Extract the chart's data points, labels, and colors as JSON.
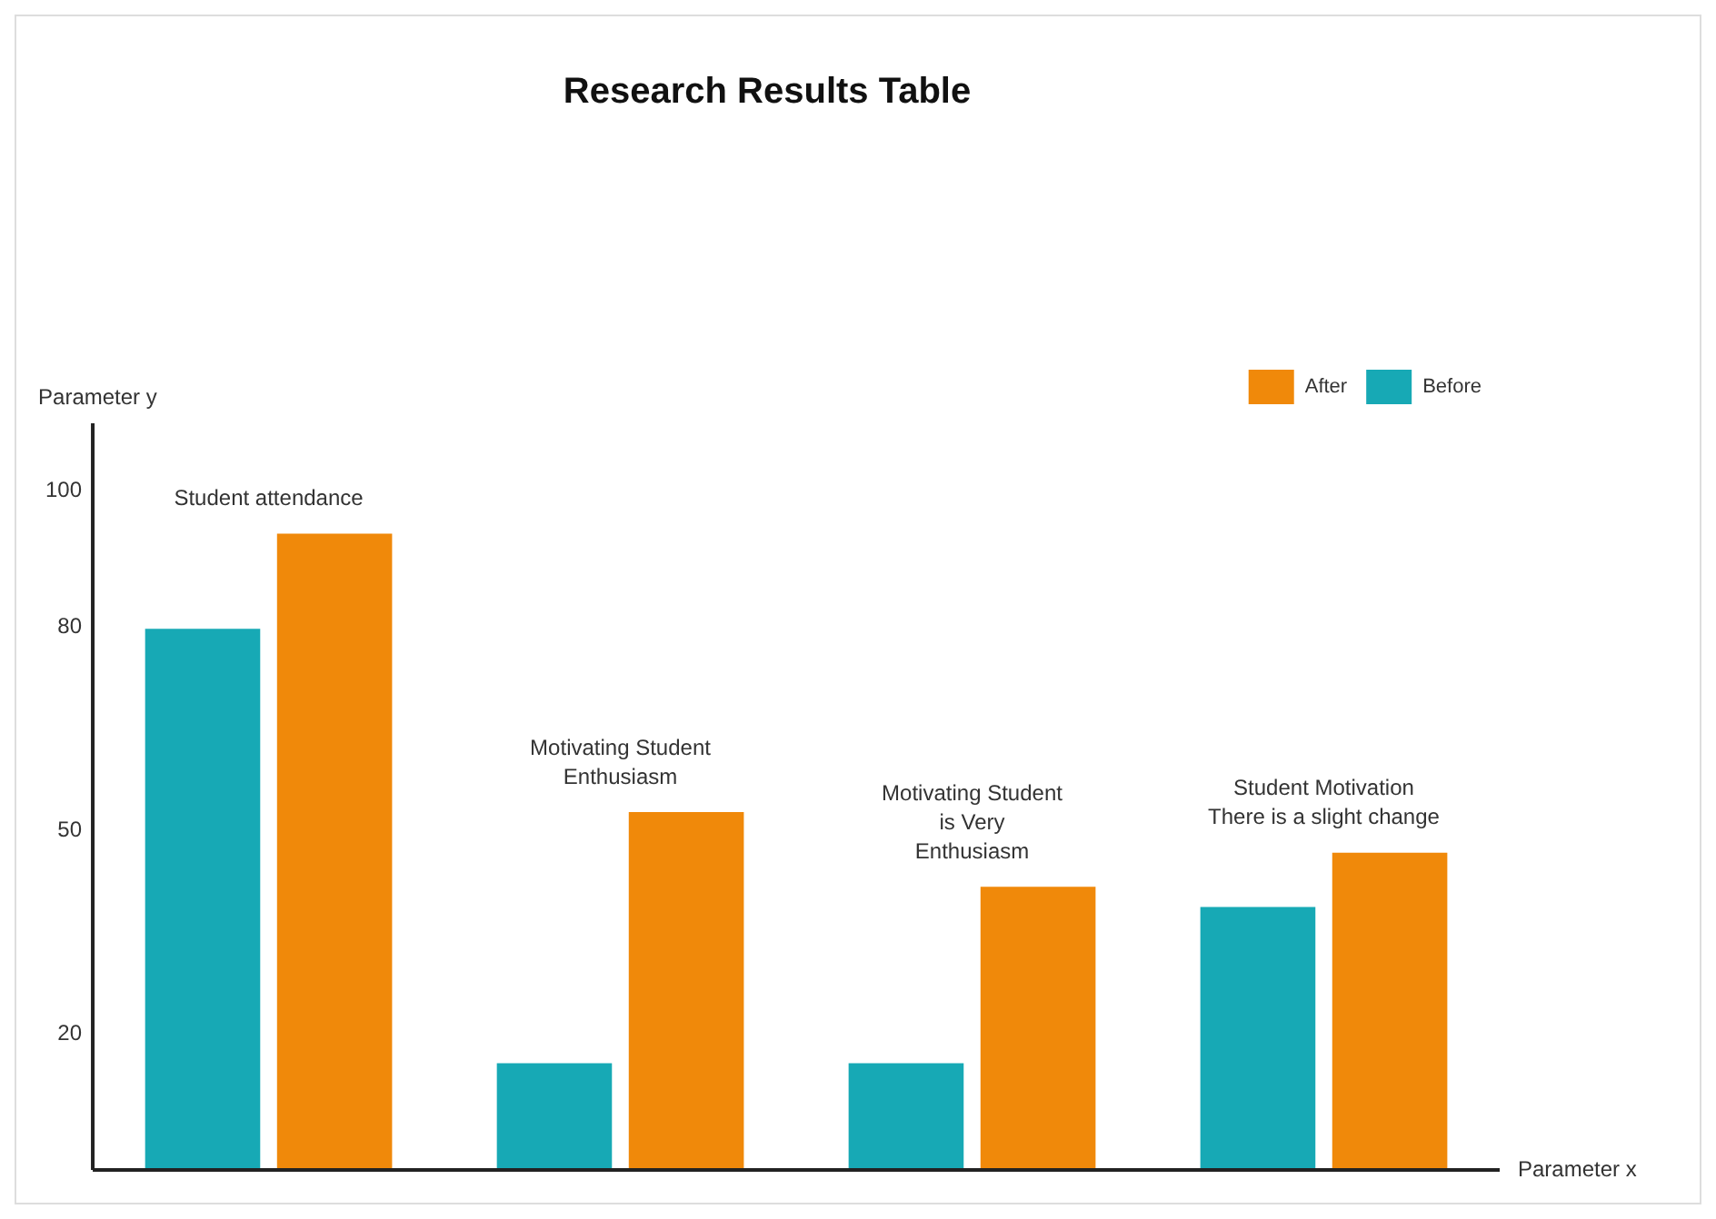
{
  "chart_data": {
    "type": "bar",
    "title": "Research Results Table",
    "xlabel": "Parameter x",
    "ylabel": "Parameter y",
    "categories": [
      null,
      null,
      null,
      null
    ],
    "series": [
      {
        "name": "Before",
        "color": "#17a9b5",
        "values": [
          80,
          16,
          16,
          39
        ]
      },
      {
        "name": "After",
        "color": "#f0890a",
        "values": [
          94,
          53,
          42,
          47
        ]
      }
    ],
    "ylim": [
      0,
      110
    ],
    "yticks": [
      20,
      50,
      80,
      100
    ],
    "grid": false,
    "legend": "top right",
    "annotations": [
      "Student attendance",
      "Motivating Student\nEnthusiasm",
      "Motivating Student\nis Very\nEnthusiasm",
      "Student Motivation\nThere is a slight change"
    ]
  }
}
